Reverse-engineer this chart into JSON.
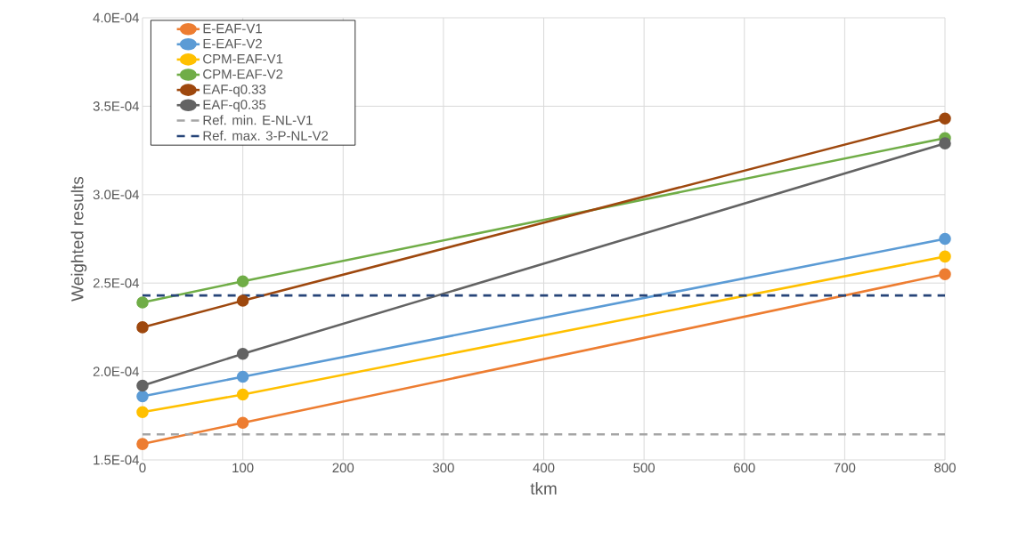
{
  "chart_data": {
    "type": "line",
    "xlabel": "tkm",
    "ylabel": "Weighted results",
    "x": [
      0,
      100,
      800
    ],
    "series": [
      {
        "name": "E-EAF-V1",
        "color": "#ed7d31",
        "values": [
          0.000159,
          0.000171,
          0.000255
        ]
      },
      {
        "name": "E-EAF-V2",
        "color": "#5b9bd5",
        "values": [
          0.000186,
          0.000197,
          0.000275
        ]
      },
      {
        "name": "CPM-EAF-V1",
        "color": "#ffc000",
        "values": [
          0.000177,
          0.000187,
          0.000265
        ]
      },
      {
        "name": "CPM-EAF-V2",
        "color": "#70ad47",
        "values": [
          0.000239,
          0.000251,
          0.000332
        ]
      },
      {
        "name": "EAF-q0.33",
        "color": "#9e480e",
        "values": [
          0.000225,
          0.00024,
          0.000343
        ]
      },
      {
        "name": "EAF-q0.35",
        "color": "#636363",
        "values": [
          0.000192,
          0.00021,
          0.000329
        ]
      }
    ],
    "ref_lines": [
      {
        "axis": "y",
        "value": 0.0001645,
        "label": "Ref. min. E-NL-V1",
        "color": "#a5a5a5",
        "line_style": "dashed"
      },
      {
        "axis": "y",
        "value": 0.000243,
        "label": "Ref. max. 3-P-NL-V2",
        "color": "#264478",
        "line_style": "dashed"
      }
    ],
    "xlim": [
      0,
      800
    ],
    "ylim": [
      0.00015,
      0.0004
    ],
    "xticks": [
      0,
      100,
      200,
      300,
      400,
      500,
      600,
      700,
      800
    ],
    "yticks": [
      {
        "value": 0.00015,
        "label": "1.5E-04"
      },
      {
        "value": 0.0002,
        "label": "2.0E-04"
      },
      {
        "value": 0.00025,
        "label": "2.5E-04"
      },
      {
        "value": 0.0003,
        "label": "3.0E-04"
      },
      {
        "value": 0.00035,
        "label": "3.5E-04"
      },
      {
        "value": 0.0004,
        "label": "4.0E-04"
      }
    ],
    "grid": true,
    "legend": "top left",
    "marker": "circle",
    "line_style": "solid"
  }
}
